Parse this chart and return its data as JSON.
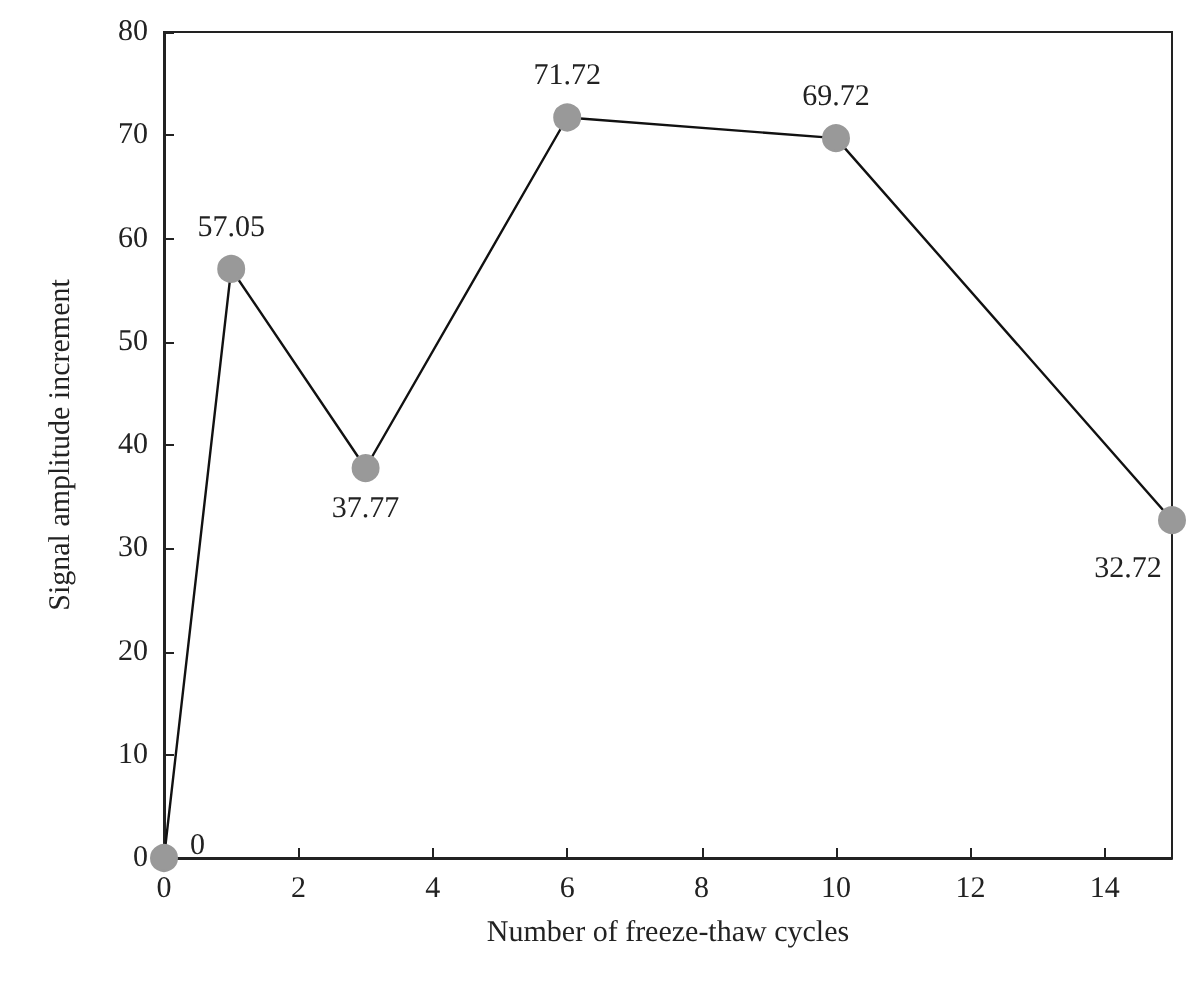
{
  "chart_data": {
    "type": "line",
    "xlabel": "Number of freeze-thaw cycles",
    "ylabel": "Signal amplitude increment",
    "x": [
      0,
      1,
      3,
      6,
      10,
      15
    ],
    "series": [
      {
        "color": "#999999",
        "values": [
          0,
          57.05,
          37.77,
          71.72,
          69.72,
          32.72
        ]
      }
    ],
    "xlim": [
      0,
      15
    ],
    "xticks": [
      0,
      2,
      4,
      6,
      8,
      10,
      12,
      14
    ],
    "ylim": [
      0,
      80
    ],
    "yticks": [
      0,
      10,
      20,
      30,
      40,
      50,
      60,
      70,
      80
    ],
    "marker": "circle",
    "line_style": "solid",
    "data_labels": true
  }
}
